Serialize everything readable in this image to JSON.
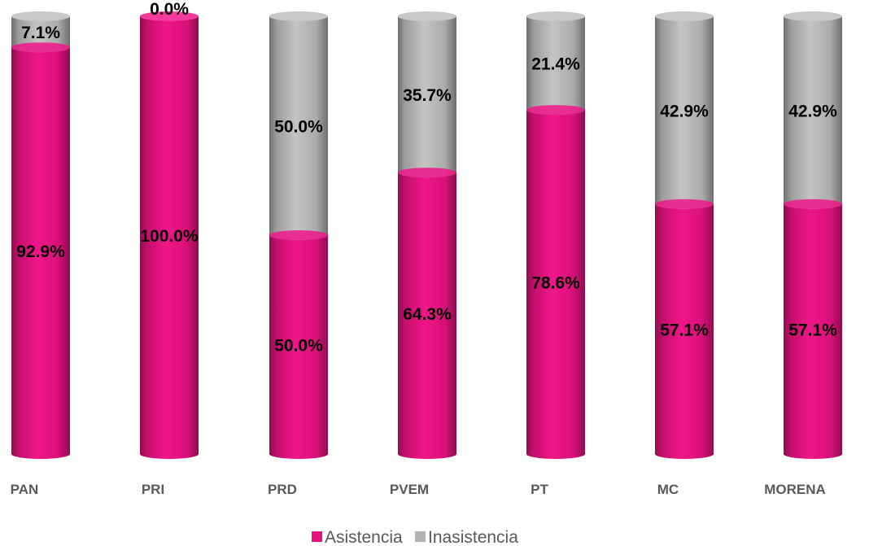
{
  "chart_data": {
    "type": "bar",
    "stacked": true,
    "percent_stacked": true,
    "style": "cylinder",
    "categories": [
      "PAN",
      "PRI",
      "PRD",
      "PVEM",
      "PT",
      "MC",
      "MORENA"
    ],
    "series": [
      {
        "name": "Asistencia",
        "color": "#E8107F",
        "values": [
          92.9,
          100.0,
          50.0,
          64.3,
          78.6,
          57.1,
          57.1
        ],
        "labels": [
          "92.9%",
          "100.0%",
          "50.0%",
          "64.3%",
          "78.6%",
          "57.1%",
          "57.1%"
        ]
      },
      {
        "name": "Inasistencia",
        "color": "#B3B3B3",
        "values": [
          7.1,
          0.0,
          50.0,
          35.7,
          21.4,
          42.9,
          42.9
        ],
        "labels": [
          "7.1%",
          "0.0%",
          "50.0%",
          "35.7%",
          "21.4%",
          "42.9%",
          "42.9%"
        ]
      }
    ],
    "ylim": [
      0,
      100
    ],
    "grid": false,
    "legend_position": "bottom"
  }
}
